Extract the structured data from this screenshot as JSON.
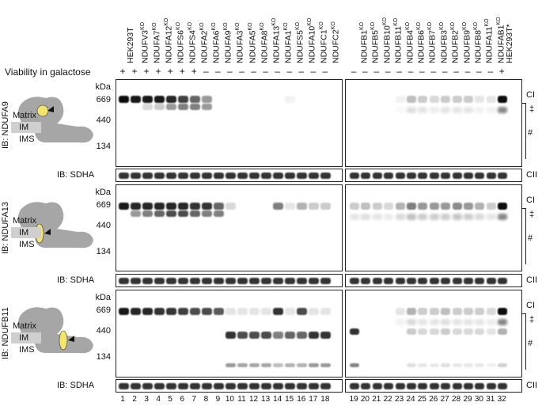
{
  "lanes": {
    "left": [
      {
        "label": "HEK293T",
        "ko": false,
        "viability": "+",
        "number": "1"
      },
      {
        "label": "NDUFV3",
        "ko": true,
        "viability": "+",
        "number": "2"
      },
      {
        "label": "NDUFA7",
        "ko": true,
        "viability": "+",
        "number": "3"
      },
      {
        "label": "NDUFA12",
        "ko": true,
        "viability": "+",
        "number": "4"
      },
      {
        "label": "NDUFS6",
        "ko": true,
        "viability": "+",
        "number": "5"
      },
      {
        "label": "NDUFS4",
        "ko": true,
        "viability": "+",
        "number": "6"
      },
      {
        "label": "NDUFA2",
        "ko": true,
        "viability": "+",
        "number": "7"
      },
      {
        "label": "NDUFA6",
        "ko": true,
        "viability": "–",
        "number": "8"
      },
      {
        "label": "NDUFA9",
        "ko": true,
        "viability": "–",
        "number": "9"
      },
      {
        "label": "NDUFA3",
        "ko": true,
        "viability": "–",
        "number": "10"
      },
      {
        "label": "NDUFA5",
        "ko": true,
        "viability": "–",
        "number": "11"
      },
      {
        "label": "NDUFA8",
        "ko": true,
        "viability": "–",
        "number": "12"
      },
      {
        "label": "NDUFA13",
        "ko": true,
        "viability": "–",
        "number": "13"
      },
      {
        "label": "NDUFA1",
        "ko": true,
        "viability": "–",
        "number": "14"
      },
      {
        "label": "NDUFS5",
        "ko": true,
        "viability": "–",
        "number": "15"
      },
      {
        "label": "NDUFA10",
        "ko": true,
        "viability": "–",
        "number": "16"
      },
      {
        "label": "NDUFC1",
        "ko": true,
        "viability": "–",
        "number": "17"
      },
      {
        "label": "NDUFC2",
        "ko": true,
        "viability": "–",
        "number": "18"
      }
    ],
    "right": [
      {
        "label": "NDUFB1",
        "ko": true,
        "viability": "–",
        "number": "19"
      },
      {
        "label": "NDUFB5",
        "ko": true,
        "viability": "–",
        "number": "20"
      },
      {
        "label": "NDUFB10",
        "ko": true,
        "viability": "–",
        "number": "21"
      },
      {
        "label": "NDUFB11",
        "ko": true,
        "viability": "–",
        "number": "22"
      },
      {
        "label": "NDUFB4",
        "ko": true,
        "viability": "–",
        "number": "23"
      },
      {
        "label": "NDUFB6",
        "ko": true,
        "viability": "–",
        "number": "24"
      },
      {
        "label": "NDUFB7",
        "ko": true,
        "viability": "–",
        "number": "25"
      },
      {
        "label": "NDUFB3",
        "ko": true,
        "viability": "–",
        "number": "26"
      },
      {
        "label": "NDUFB2",
        "ko": true,
        "viability": "–",
        "number": "27"
      },
      {
        "label": "NDUFB9",
        "ko": true,
        "viability": "–",
        "number": "28"
      },
      {
        "label": "NDUFB8",
        "ko": true,
        "viability": "–",
        "number": "29"
      },
      {
        "label": "NDUFA11",
        "ko": true,
        "viability": "–",
        "number": "30"
      },
      {
        "label": "NDUFAB1",
        "ko": true,
        "viability": "–",
        "number": "31"
      },
      {
        "label": "HEK293T*",
        "ko": false,
        "viability": "+",
        "number": "32"
      }
    ]
  },
  "ko_suffix": "KO",
  "viability_label": "Viability in galactose",
  "panels": [
    {
      "ib": "IB: NDUFA9",
      "kda_unit": "kDa",
      "markers": [
        "669",
        "440",
        "134"
      ],
      "labels": [
        "CI",
        "‡",
        "#"
      ],
      "schematic": {
        "matrix": "Matrix",
        "im": "IM",
        "ims": "IMS"
      }
    },
    {
      "ib": "IB: NDUFA13",
      "kda_unit": "kDa",
      "markers": [
        "669",
        "440",
        "134"
      ],
      "labels": [
        "CI",
        "‡",
        "#"
      ],
      "schematic": {
        "matrix": "Matrix",
        "im": "IM",
        "ims": "IMS"
      }
    },
    {
      "ib": "IB: NDUFB11",
      "kda_unit": "kDa",
      "markers": [
        "669",
        "440",
        "134"
      ],
      "labels": [
        "CI",
        "‡",
        "#"
      ],
      "schematic": {
        "matrix": "Matrix",
        "im": "IM",
        "ims": "IMS"
      }
    }
  ],
  "loading": {
    "label": "IB: SDHA",
    "marker": "CII"
  },
  "colors": {
    "band": "#000000",
    "highlight": "#f3e56b",
    "complex": "#a6a6a6"
  }
}
